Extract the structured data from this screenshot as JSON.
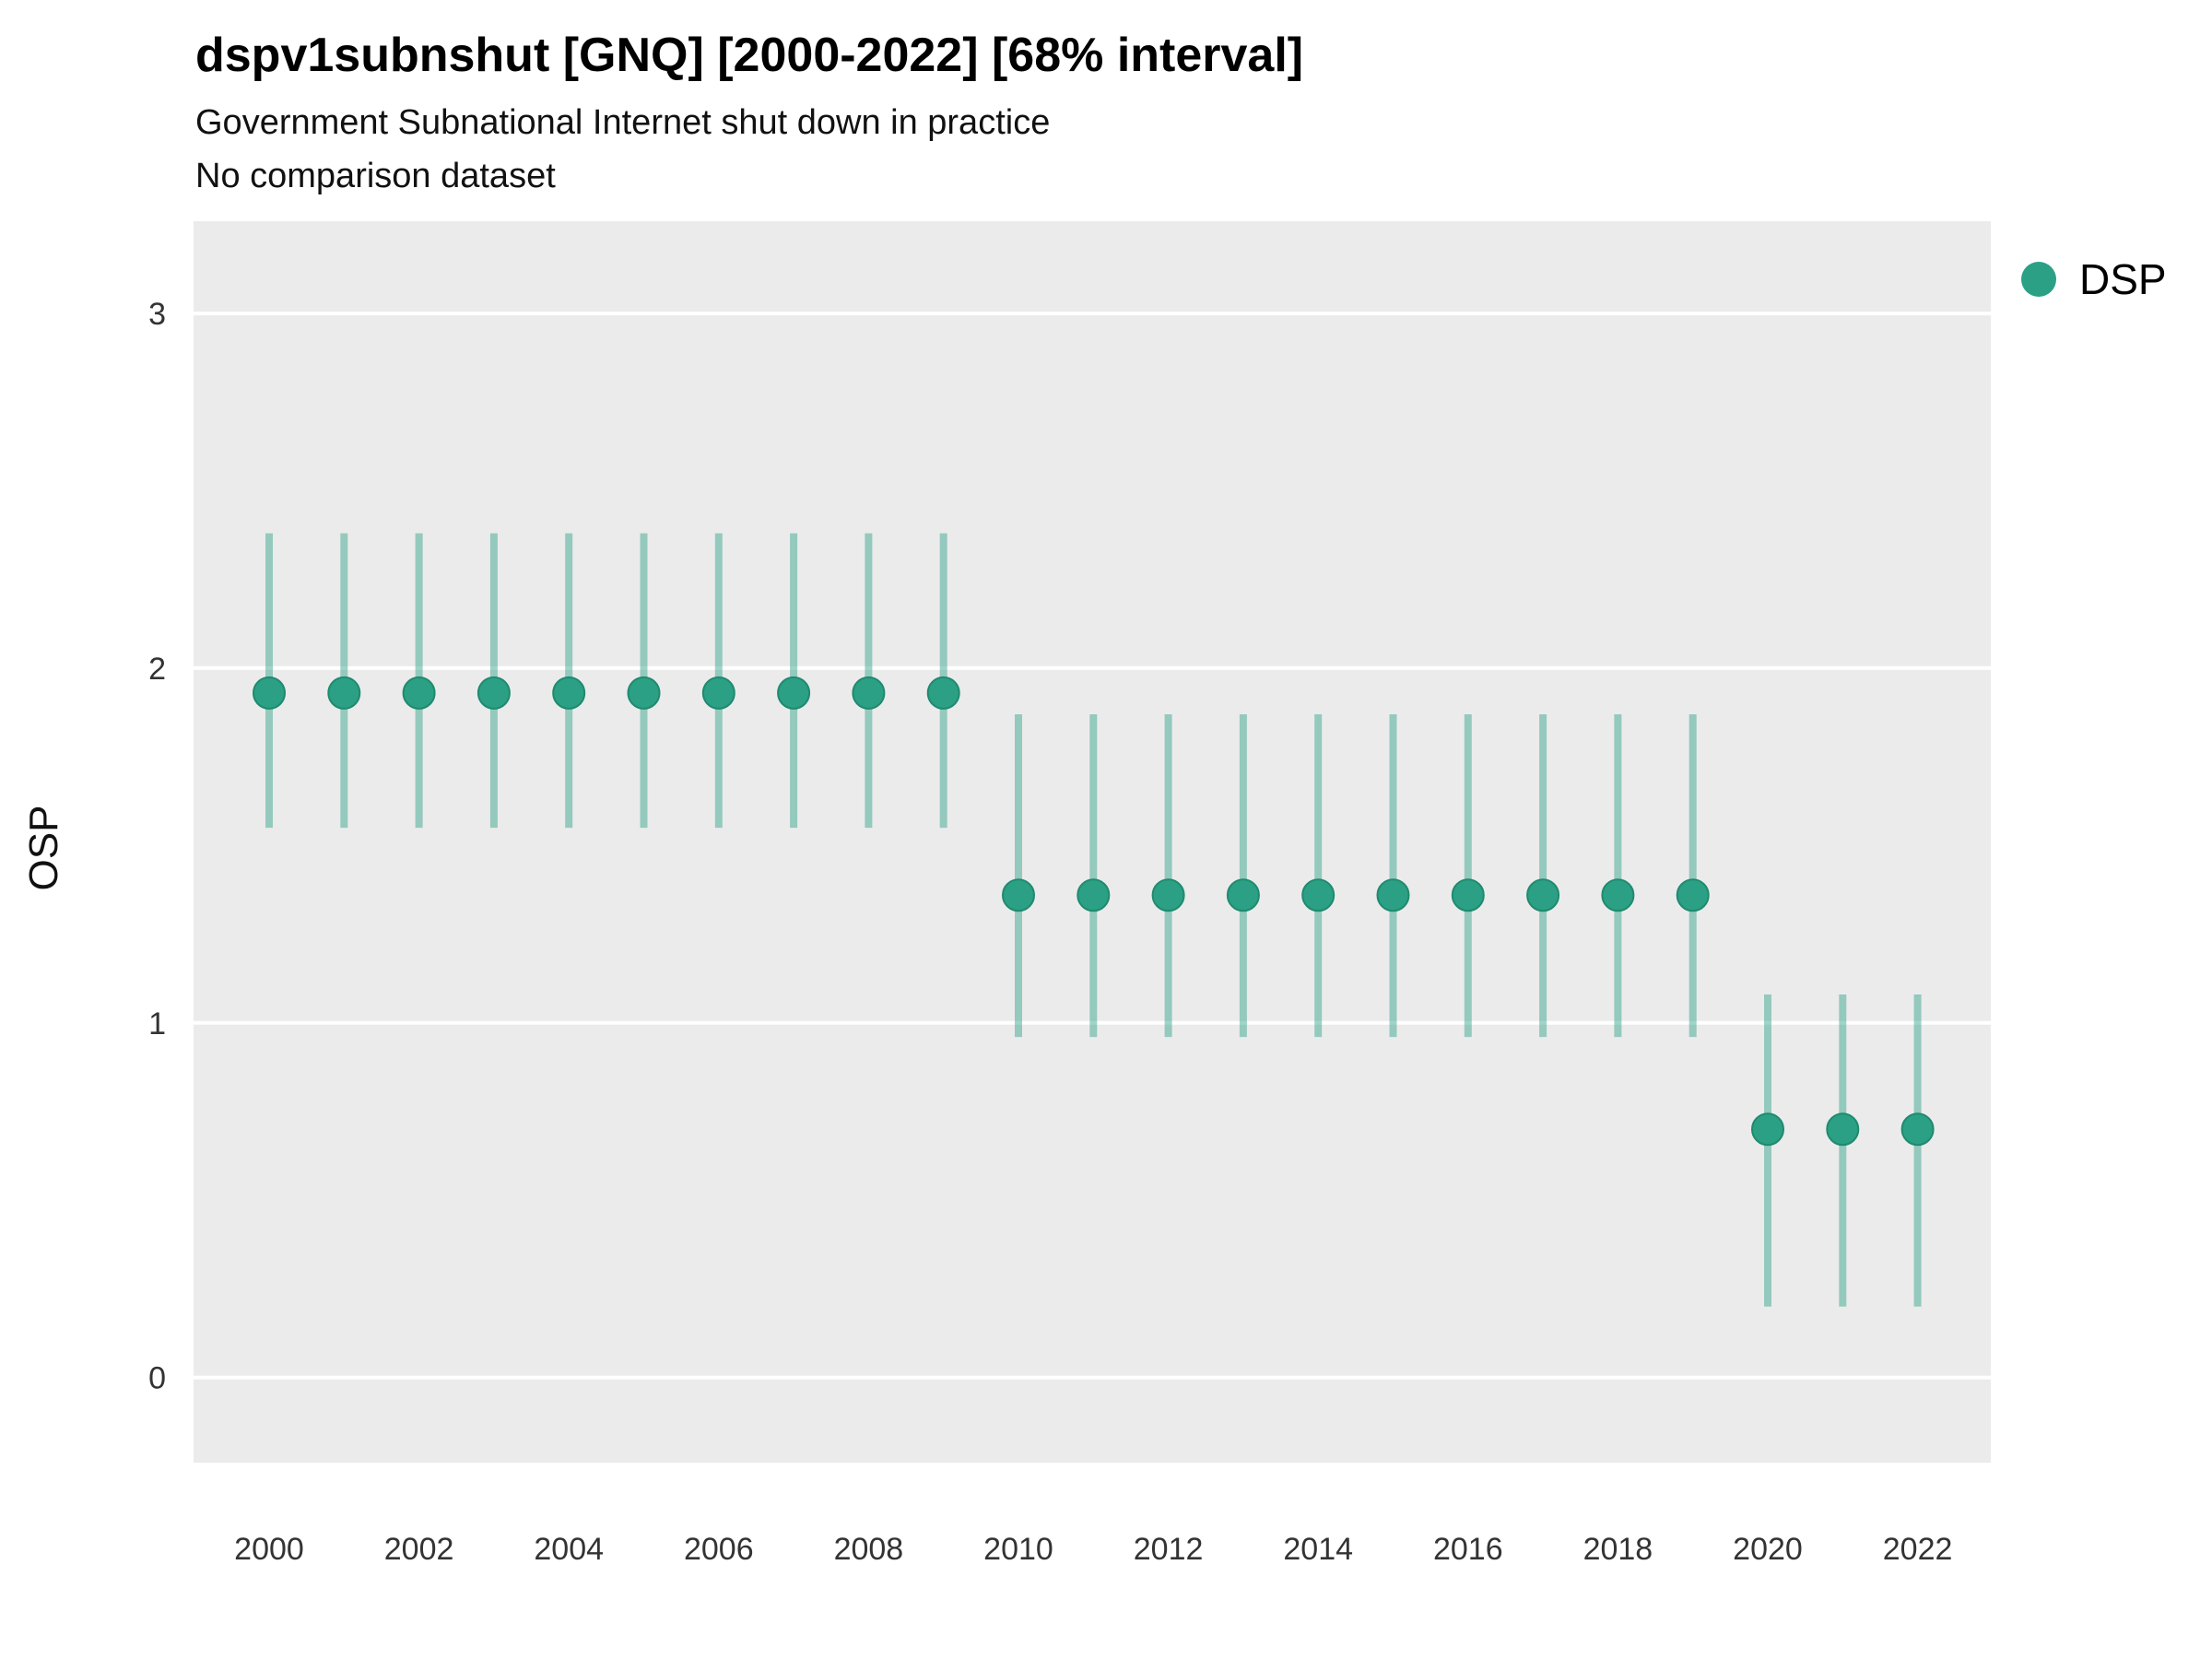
{
  "page": {
    "title": "dspv1subnshut [GNQ] [2000-2022] [68% interval]",
    "subtitle": "Government Subnational Internet shut down in practice",
    "note": "No comparison dataset"
  },
  "colors": {
    "accent": "#2BA084",
    "accent_stroke": "#1F8A6F",
    "interval": "#2BA084",
    "plot_background": "#EBEBEB",
    "gridline": "#FFFFFF",
    "tick_text": "#333333",
    "text": "#000000"
  },
  "chart_data": {
    "type": "scatter",
    "title": "dspv1subnshut [GNQ] [2000-2022] [68% interval]",
    "subtitle": "Government Subnational Internet shut down in practice",
    "note": "No comparison dataset",
    "interval_label": "68% interval",
    "xlabel": "",
    "ylabel": "OSP",
    "x": [
      2000,
      2001,
      2002,
      2003,
      2004,
      2005,
      2006,
      2007,
      2008,
      2009,
      2010,
      2011,
      2012,
      2013,
      2014,
      2015,
      2016,
      2017,
      2018,
      2019,
      2020,
      2021,
      2022
    ],
    "series": [
      {
        "name": "DSP",
        "color": "#2BA084",
        "estimates": [
          1.93,
          1.93,
          1.93,
          1.93,
          1.93,
          1.93,
          1.93,
          1.93,
          1.93,
          1.93,
          1.36,
          1.36,
          1.36,
          1.36,
          1.36,
          1.36,
          1.36,
          1.36,
          1.36,
          1.36,
          0.7,
          0.7,
          0.7
        ],
        "lower": [
          1.55,
          1.55,
          1.55,
          1.55,
          1.55,
          1.55,
          1.55,
          1.55,
          1.55,
          1.55,
          0.96,
          0.96,
          0.96,
          0.96,
          0.96,
          0.96,
          0.96,
          0.96,
          0.96,
          0.96,
          0.2,
          0.2,
          0.2
        ],
        "upper": [
          2.38,
          2.38,
          2.38,
          2.38,
          2.38,
          2.38,
          2.38,
          2.38,
          2.38,
          2.38,
          1.87,
          1.87,
          1.87,
          1.87,
          1.87,
          1.87,
          1.87,
          1.87,
          1.87,
          1.87,
          1.08,
          1.08,
          1.08
        ]
      }
    ],
    "yticks": [
      0,
      1,
      2,
      3
    ],
    "xticks": [
      2000,
      2002,
      2004,
      2006,
      2008,
      2010,
      2012,
      2014,
      2016,
      2018,
      2020,
      2022
    ],
    "ylim": [
      -0.24,
      3.26
    ],
    "grid": "major horizontal white lines on gray panel",
    "legend": [
      {
        "label": "DSP",
        "color": "#2BA084"
      }
    ],
    "legend_position": "right-top"
  }
}
